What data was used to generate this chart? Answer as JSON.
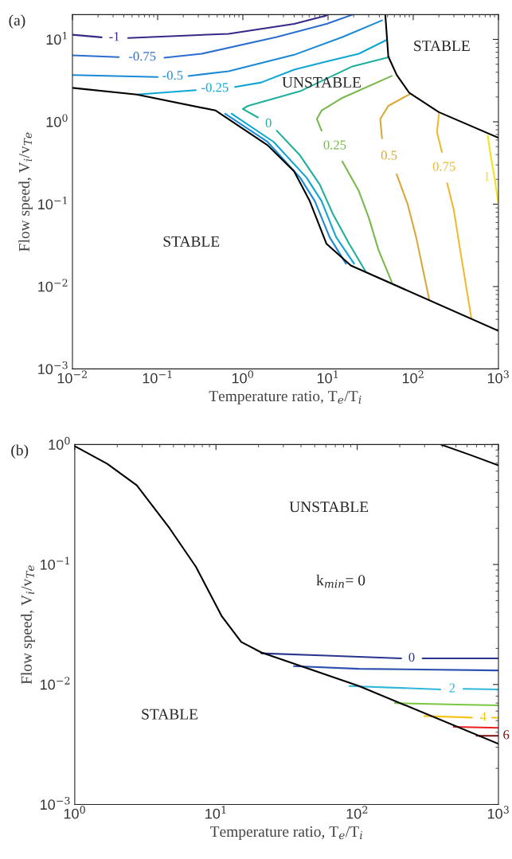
{
  "chart_data": [
    {
      "type": "line",
      "title": "(a)",
      "xlabel": "Temperature ratio, T$_{e}$/T$_{i}$",
      "ylabel": "Flow speed, V$_{i}$/v$_{Te}$",
      "log": "xy",
      "xlim": [
        0.01,
        1000
      ],
      "ylim": [
        0.001,
        20
      ],
      "xticks": [
        {
          "value": 0.01,
          "label": "10$^{−2}$"
        },
        {
          "value": 0.1,
          "label": "10$^{−1}$"
        },
        {
          "value": 1,
          "label": "10$^{0}$"
        },
        {
          "value": 10,
          "label": "10$^{1}$"
        },
        {
          "value": 100,
          "label": "10$^{2}$"
        },
        {
          "value": 1000,
          "label": "10$^{3}$"
        }
      ],
      "yticks": [
        {
          "value": 0.001,
          "label": "10$^{−3}$"
        },
        {
          "value": 0.01,
          "label": "10$^{−2}$"
        },
        {
          "value": 0.1,
          "label": "10$^{−1}$"
        },
        {
          "value": 1,
          "label": "10$^{0}$"
        },
        {
          "value": 10,
          "label": "10$^{1}$"
        }
      ],
      "series": [
        {
          "name": "-1",
          "color": "#352a87",
          "x": [
            0.01,
            0.022,
            0.031,
            0.045,
            0.68,
            4.0,
            9.6
          ],
          "values": [
            11.4,
            10.6,
            null,
            10.4,
            11.7,
            15.4,
            19.5
          ]
        },
        {
          "name": "-0.75",
          "color": "#2c6dd0",
          "x": [
            0.01,
            0.035,
            0.066,
            0.12,
            0.33,
            2.5,
            9.6,
            19.5
          ],
          "values": [
            6.4,
            6.1,
            null,
            6.0,
            6.7,
            10.7,
            15.4,
            20
          ]
        },
        {
          "name": "-0.5",
          "color": "#1b8ad6",
          "x": [
            0.01,
            0.1,
            0.15,
            0.23,
            0.68,
            4.0,
            14.8,
            43
          ],
          "values": [
            3.69,
            3.5,
            null,
            3.6,
            4.1,
            6.5,
            10.7,
            17
          ]
        },
        {
          "color": "#1b8ad6",
          "x": [
            0.62,
            1.95,
            4.7,
            7.0,
            10.4,
            16.2
          ],
          "values": [
            1.25,
            0.57,
            0.21,
            0.109,
            0.04,
            0.019
          ]
        },
        {
          "name": "-0.25",
          "color": "#10a6d4",
          "x": [
            0.057,
            0.28,
            0.47,
            0.81,
            1.64,
            4.0,
            9.6,
            23,
            49
          ],
          "values": [
            2.14,
            2.42,
            null,
            2.65,
            3.0,
            4.3,
            5.4,
            6.7,
            9.9
          ]
        },
        {
          "color": "#10a6d4",
          "x": [
            0.74,
            2.3,
            5.6,
            8.4,
            12.4,
            20.2
          ],
          "values": [
            1.25,
            0.57,
            0.21,
            0.109,
            0.04,
            0.019
          ]
        },
        {
          "name": "0",
          "color": "#1faf9c",
          "x": [
            52,
            19.3,
            4.7,
            1.15,
            1.0,
            1.5,
            2.0,
            2.5,
            4.7,
            8.0,
            11.4,
            17.7,
            27.5
          ],
          "values": [
            6.1,
            4.7,
            2.35,
            1.56,
            1.43,
            1.13,
            null,
            0.78,
            0.39,
            0.173,
            0.076,
            0.033,
            0.0153
          ]
        },
        {
          "name": "0.25",
          "color": "#78b94c",
          "x": [
            56,
            14.7,
            8.4,
            7.4,
            8.4,
            12,
            14.7,
            23,
            30,
            39,
            56
          ],
          "values": [
            3.6,
            1.95,
            1.37,
            1.08,
            0.78,
            null,
            0.33,
            0.144,
            0.069,
            0.028,
            0.0113
          ]
        },
        {
          "name": "0.5",
          "color": "#d6a93a",
          "x": [
            90,
            51,
            41,
            43,
            52,
            64,
            86,
            108,
            154
          ],
          "values": [
            2.15,
            1.56,
            1.08,
            0.63,
            null,
            0.23,
            0.1,
            0.04,
            0.007
          ]
        },
        {
          "name": "0.75",
          "color": "#f0b92e",
          "x": [
            200,
            190,
            217,
            230,
            250,
            300,
            355,
            480
          ],
          "values": [
            1.24,
            0.75,
            0.43,
            null,
            0.18,
            0.084,
            0.028,
            0.0042
          ]
        },
        {
          "name": "1",
          "color": "#f4e31b",
          "x": [
            750,
            810,
            900,
            1000
          ],
          "values": [
            0.68,
            0.39,
            0.21,
            0.1
          ]
        },
        {
          "color": "#000000",
          "x": [
            0.01,
            0.057,
            0.48,
            1.95,
            4.0,
            6.1,
            9.6,
            18.5,
            1000
          ],
          "values": [
            2.58,
            2.14,
            1.37,
            0.52,
            0.25,
            0.109,
            0.033,
            0.018,
            0.0029
          ]
        },
        {
          "color": "#000000",
          "x": [
            47,
            51,
            64,
            90,
            200,
            1000
          ],
          "values": [
            20,
            6.2,
            3.7,
            2.24,
            1.31,
            0.64
          ]
        }
      ],
      "annotations": [
        "STABLE",
        "UNSTABLE",
        "STABLE"
      ]
    },
    {
      "type": "line",
      "title": "(b)",
      "xlabel": "Temperature ratio, T$_{e}$/T$_{i}$",
      "ylabel": "Flow speed, V$_{i}$/v$_{Te}$",
      "log": "xy",
      "xlim": [
        1,
        1000
      ],
      "ylim": [
        0.001,
        1
      ],
      "xticks": [
        {
          "value": 1,
          "label": "10$^{0}$"
        },
        {
          "value": 10,
          "label": "10$^{1}$"
        },
        {
          "value": 100,
          "label": "10$^{2}$"
        },
        {
          "value": 1000,
          "label": "10$^{3}$"
        }
      ],
      "yticks": [
        {
          "value": 0.001,
          "label": "10$^{−3}$"
        },
        {
          "value": 0.01,
          "label": "10$^{−2}$"
        },
        {
          "value": 0.1,
          "label": "10$^{−1}$"
        },
        {
          "value": 1,
          "label": "10$^{0}$"
        }
      ],
      "series": [
        {
          "name": "0",
          "color": "#2a3590",
          "x": [
            20.9,
            60.6,
            205,
            243,
            290,
            1000
          ],
          "values": [
            0.0182,
            0.0174,
            0.0165,
            null,
            0.0165,
            0.0165
          ]
        },
        {
          "color": "#2b4fae",
          "x": [
            35.6,
            103,
            1000
          ],
          "values": [
            0.0142,
            0.0135,
            0.0131
          ]
        },
        {
          "name": "2",
          "color": "#30b7d9",
          "x": [
            88,
            388,
            470,
            565,
            1000
          ],
          "values": [
            0.0097,
            0.0091,
            null,
            0.0092,
            0.0091
          ]
        },
        {
          "color": "#79c843",
          "x": [
            185,
            510,
            1000
          ],
          "values": [
            0.007,
            0.0068,
            0.0067
          ]
        },
        {
          "name": "4",
          "color": "#f5c518",
          "x": [
            299,
            650,
            780,
            900,
            1000
          ],
          "values": [
            0.00546,
            0.0053,
            null,
            0.00529,
            0.00529
          ]
        },
        {
          "color": "#e82020",
          "x": [
            482,
            1000
          ],
          "values": [
            0.00444,
            0.00435
          ]
        },
        {
          "name": "6",
          "color": "#7a1010",
          "x": [
            700,
            1000
          ],
          "values": [
            0.00373,
            0.00373
          ]
        },
        {
          "color": "#000000",
          "x": [
            1,
            1.7,
            2.75,
            4.7,
            7.2,
            11,
            15.1,
            20.9,
            103,
            1000
          ],
          "values": [
            0.97,
            0.69,
            0.457,
            0.2,
            0.096,
            0.037,
            0.0226,
            0.0185,
            0.0097,
            0.0032
          ]
        },
        {
          "color": "#000000",
          "x": [
            390,
            630,
            1000
          ],
          "values": [
            1,
            0.82,
            0.67
          ]
        }
      ],
      "annotations": [
        "UNSTABLE",
        "k$_{min}$= 0",
        "STABLE"
      ]
    }
  ]
}
